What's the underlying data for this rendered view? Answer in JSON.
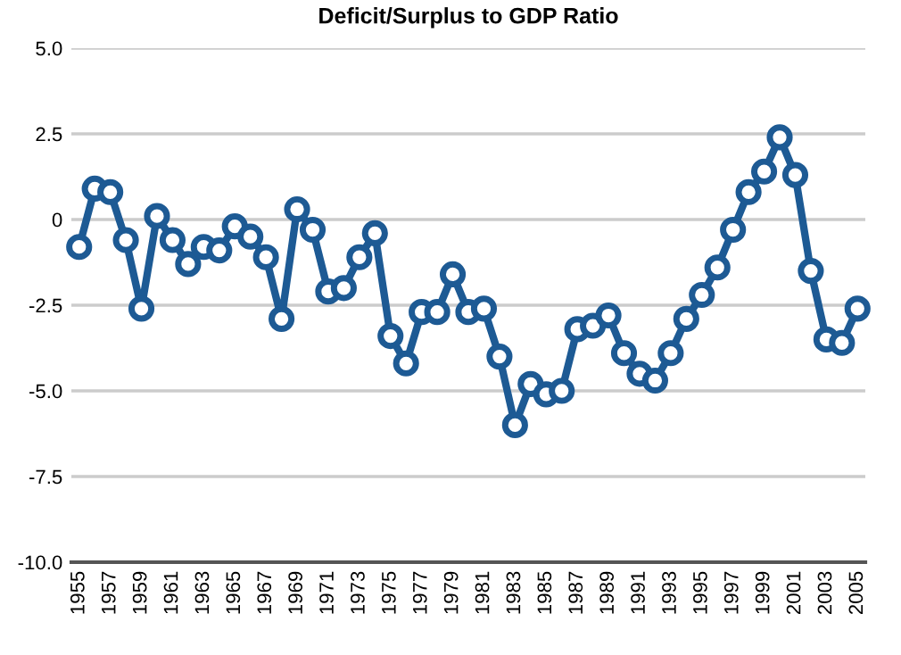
{
  "chart_data": {
    "type": "line",
    "title": "Deficit/Surplus to GDP Ratio",
    "categories": [
      "1955",
      null,
      "1957",
      null,
      "1959",
      null,
      "1961",
      null,
      "1963",
      null,
      "1965",
      null,
      "1967",
      null,
      "1969",
      null,
      "1971",
      null,
      "1973",
      null,
      "1975",
      null,
      "1977",
      null,
      "1979",
      null,
      "1981",
      null,
      "1983",
      null,
      "1985",
      null,
      "1987",
      null,
      "1989",
      null,
      "1991",
      null,
      "1993",
      null,
      "1995",
      null,
      "1997",
      null,
      "1999",
      null,
      "2001",
      null,
      "2003",
      null,
      "2005"
    ],
    "series": [
      {
        "color": "#1d5a94",
        "values": [
          -0.8,
          0.9,
          0.8,
          -0.6,
          -2.6,
          0.1,
          -0.6,
          -1.3,
          -0.8,
          -0.9,
          -0.2,
          -0.5,
          -1.1,
          -2.9,
          0.3,
          -0.3,
          -2.1,
          -2.0,
          -1.1,
          -0.4,
          -3.4,
          -4.2,
          -2.7,
          -2.7,
          -1.6,
          -2.7,
          -2.6,
          -4.0,
          -6.0,
          -4.8,
          -5.1,
          -5.0,
          -3.2,
          -3.1,
          -2.8,
          -3.9,
          -4.5,
          -4.7,
          -3.9,
          -2.9,
          -2.2,
          -1.4,
          -0.3,
          0.8,
          1.4,
          2.4,
          1.3,
          -1.5,
          -3.5,
          -3.6,
          -2.6
        ]
      }
    ],
    "ylim": [
      -10,
      5
    ],
    "yticks": [
      {
        "value": -10,
        "label": "-10.0"
      },
      {
        "value": -7.5,
        "label": "-7.5"
      },
      {
        "value": -5,
        "label": "-5.0"
      },
      {
        "value": -2.5,
        "label": "-2.5"
      },
      {
        "value": 0,
        "label": "0"
      },
      {
        "value": 2.5,
        "label": "2.5"
      },
      {
        "value": 5,
        "label": "5.0"
      }
    ],
    "grid": "y",
    "marker": "circle",
    "line_style": "solid"
  }
}
